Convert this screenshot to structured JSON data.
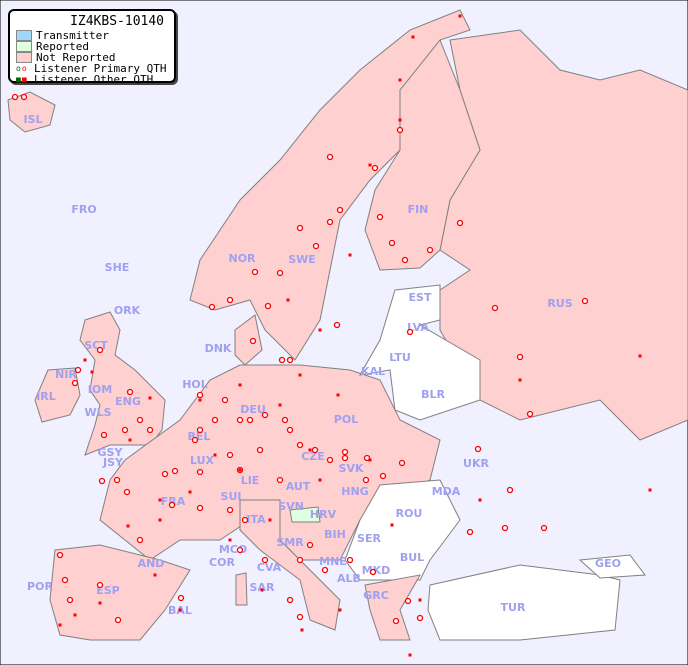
{
  "legend": {
    "title": "IZ4KBS-10140",
    "items": [
      {
        "label": "Transmitter",
        "color": "#a0d8f8"
      },
      {
        "label": "Reported",
        "color": "#e0ffe0"
      },
      {
        "label": "Not Reported",
        "color": "#ffd0d0"
      },
      {
        "label": "Listener Primary QTH",
        "color": "#ff0000"
      },
      {
        "label": "Listener Other QTH",
        "color": "#ff0000"
      }
    ]
  },
  "colors": {
    "sea": "#f0f0ff",
    "not_reported": "#ffd0d0",
    "reported": "#e0ffe0",
    "no_listener": "#ffffff",
    "border": "#808080",
    "label": "#a0a0f0",
    "marker": "#ff0000"
  },
  "countries": {
    "not_reported": [
      "ISL",
      "FRO",
      "SHE",
      "ORK",
      "NOR",
      "SWE",
      "FIN",
      "LVA",
      "RUS",
      "DNK",
      "SCT",
      "NIR",
      "IRL",
      "IOM",
      "ENG",
      "WLS",
      "HOL",
      "BEL",
      "DEU",
      "POL",
      "LUX",
      "GSY",
      "JSY",
      "FRA",
      "LIE",
      "CZE",
      "SVK",
      "AUT",
      "HNG",
      "SUI",
      "HRV",
      "ITA",
      "UKR",
      "SER",
      "MCO",
      "COR",
      "SMR",
      "CVA",
      "MNE",
      "AND",
      "ESP",
      "POR",
      "BAL",
      "SAR",
      "GRC"
    ],
    "reported": [
      "SVN"
    ],
    "no_listener": [
      "EST",
      "LTU",
      "KAL",
      "BLR",
      "MDA",
      "ROU",
      "BIH",
      "BUL",
      "MKD",
      "ALB",
      "TUR",
      "GEO"
    ]
  },
  "labels": [
    "ISL",
    "FRO",
    "SHE",
    "ORK",
    "NOR",
    "SWE",
    "FIN",
    "EST",
    "LVA",
    "LTU",
    "KAL",
    "RUS",
    "BLR",
    "DNK",
    "SCT",
    "NIR",
    "IRL",
    "IOM",
    "ENG",
    "WLS",
    "HOL",
    "BEL",
    "DEU",
    "POL",
    "LUX",
    "GSY",
    "JSY",
    "FRA",
    "LIE",
    "CZE",
    "SVK",
    "AUT",
    "HNG",
    "SUI",
    "SVN",
    "HRV",
    "ITA",
    "MDA",
    "UKR",
    "ROU",
    "BIH",
    "SER",
    "MCO",
    "COR",
    "SMR",
    "CVA",
    "MNE",
    "BUL",
    "AND",
    "ESP",
    "POR",
    "BAL",
    "SAR",
    "ALB",
    "MKD",
    "GRC",
    "TUR",
    "GEO"
  ]
}
